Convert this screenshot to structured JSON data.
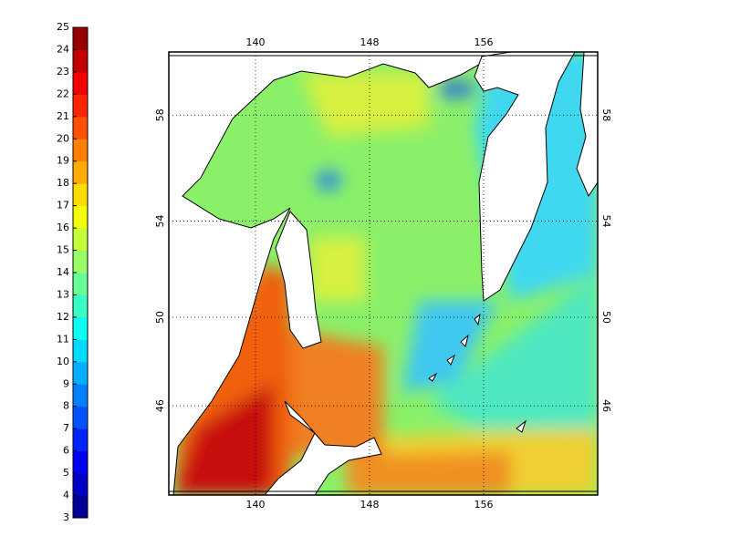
{
  "colorbar": {
    "lim": [
      3,
      25
    ],
    "ticks": [
      3,
      4,
      5,
      6,
      7,
      8,
      9,
      10,
      11,
      12,
      13,
      14,
      15,
      16,
      17,
      18,
      19,
      20,
      21,
      22,
      23,
      24,
      25
    ]
  },
  "map": {
    "lon_ticks": [
      140,
      148,
      156
    ],
    "lat_ticks": [
      46,
      50,
      54,
      58
    ]
  }
}
